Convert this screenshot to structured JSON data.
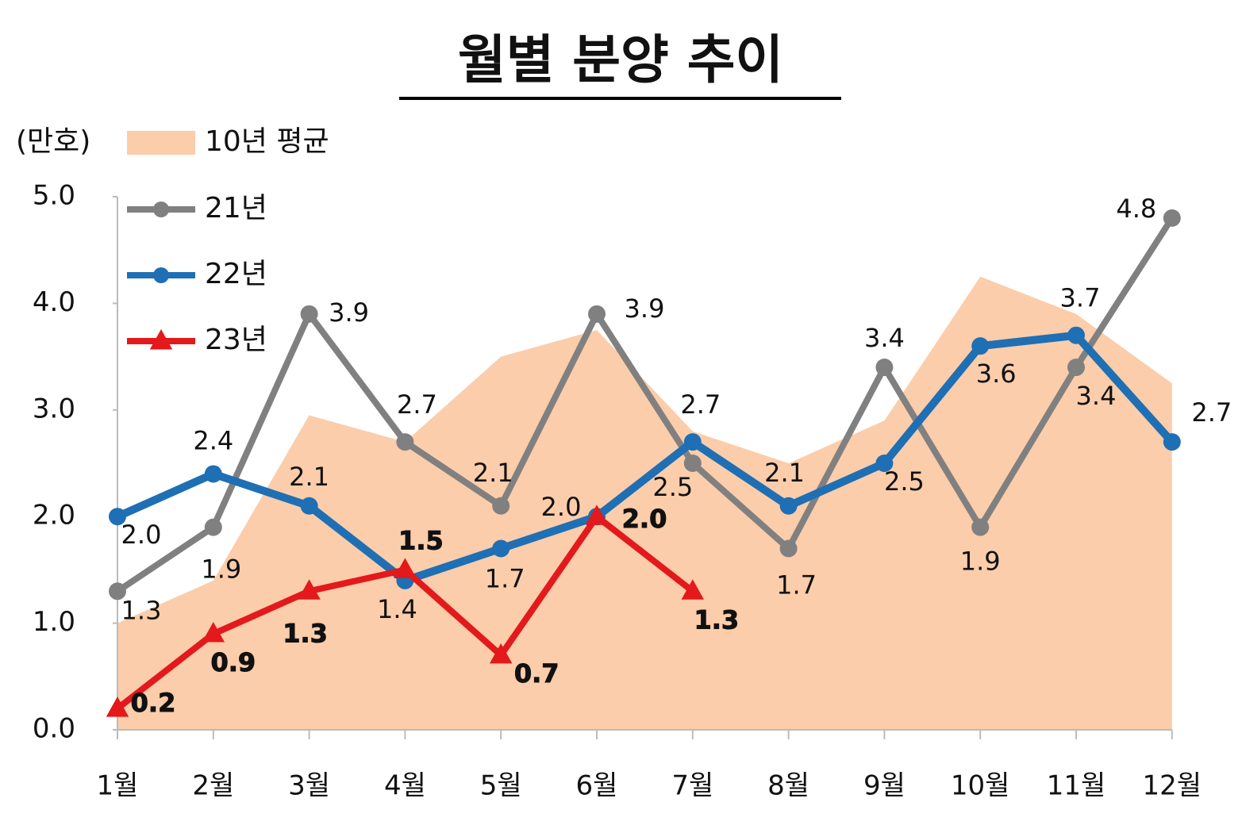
{
  "chart_data": {
    "type": "line",
    "title": "월별 분양 추이",
    "y_axis_label": "(만호)",
    "categories": [
      "1월",
      "2월",
      "3월",
      "4월",
      "5월",
      "6월",
      "7월",
      "8월",
      "9월",
      "10월",
      "11월",
      "12월"
    ],
    "ylim": [
      0,
      5
    ],
    "yticks": [
      {
        "value": 0,
        "label": "0.0"
      },
      {
        "value": 1,
        "label": "1.0"
      },
      {
        "value": 2,
        "label": "2.0"
      },
      {
        "value": 3,
        "label": "3.0"
      },
      {
        "value": 4,
        "label": "4.0"
      },
      {
        "value": 5,
        "label": "5.0"
      }
    ],
    "series": [
      {
        "name": "10년 평균",
        "type": "area",
        "color": "#fbcdaa",
        "values": [
          1.0,
          1.4,
          2.95,
          2.7,
          3.5,
          3.75,
          2.8,
          2.5,
          2.9,
          4.25,
          3.9,
          3.25
        ]
      },
      {
        "name": "21년",
        "type": "line",
        "marker": "circle",
        "color": "#808080",
        "values": [
          1.3,
          1.9,
          3.9,
          2.7,
          2.1,
          3.9,
          2.5,
          1.7,
          3.4,
          1.9,
          3.4,
          4.8
        ],
        "value_labels": [
          "1.3",
          "1.9",
          "3.9",
          "2.7",
          "2.1",
          "3.9",
          "2.5",
          "1.7",
          "3.4",
          "1.9",
          "3.4",
          "4.8"
        ]
      },
      {
        "name": "22년",
        "type": "line",
        "marker": "circle",
        "color": "#1f6fb4",
        "values": [
          2.0,
          2.4,
          2.1,
          1.4,
          1.7,
          2.0,
          2.7,
          2.1,
          2.5,
          3.6,
          3.7,
          2.7
        ],
        "value_labels": [
          "2.0",
          "2.4",
          "2.1",
          "1.4",
          "1.7",
          "2.0",
          "2.7",
          "2.1",
          "2.5",
          "3.6",
          "3.7",
          "2.7"
        ]
      },
      {
        "name": "23년",
        "type": "line",
        "marker": "triangle",
        "color": "#e3191c",
        "bold_labels": true,
        "values": [
          0.2,
          0.9,
          1.3,
          1.5,
          0.7,
          2.0,
          1.3,
          null,
          null,
          null,
          null,
          null
        ],
        "value_labels": [
          "0.2",
          "0.9",
          "1.3",
          "1.5",
          "0.7",
          "2.0",
          "1.3",
          null,
          null,
          null,
          null,
          null
        ]
      }
    ]
  }
}
